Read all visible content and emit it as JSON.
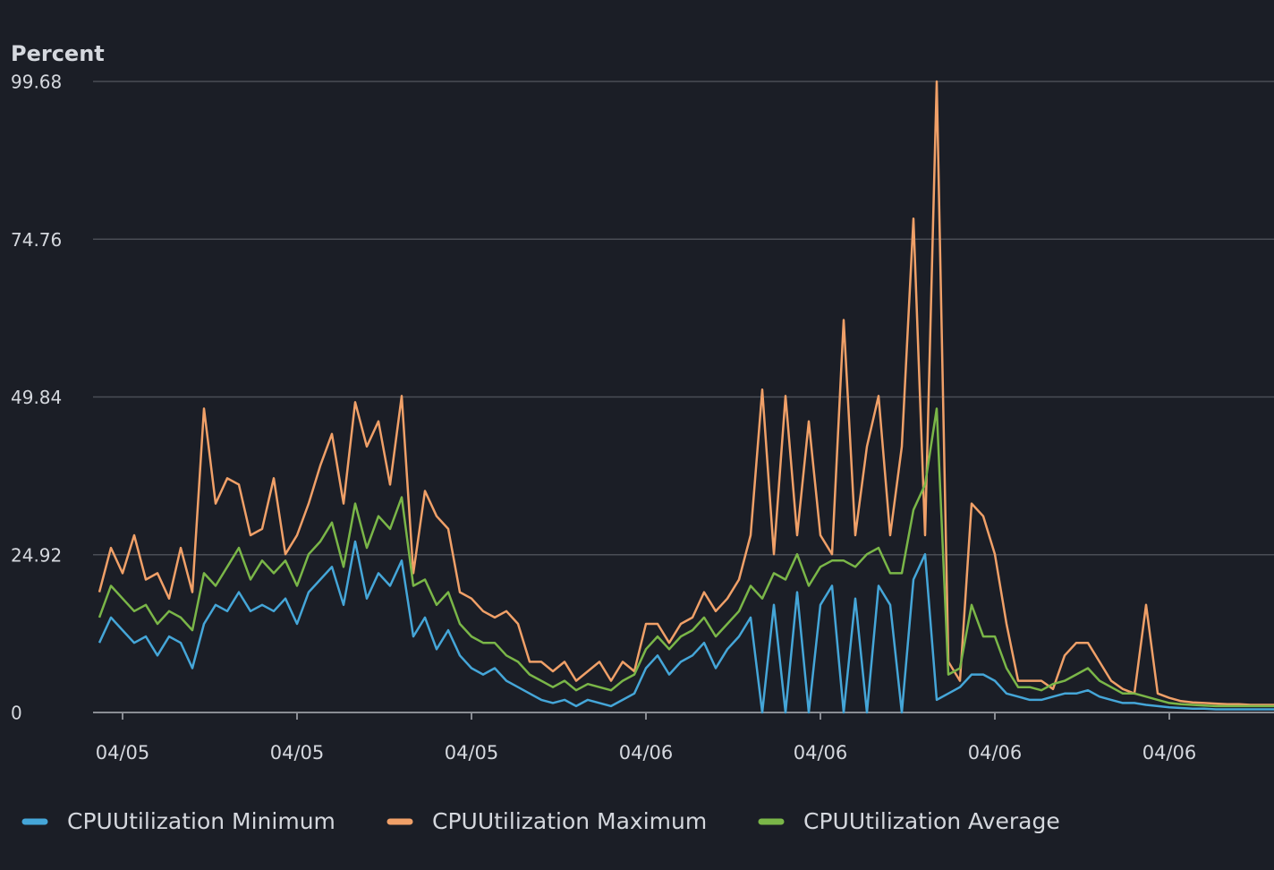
{
  "chart_data": {
    "type": "line",
    "y_label": "Percent",
    "ylim": [
      0,
      99.68
    ],
    "yticks": [
      0,
      24.92,
      49.84,
      74.76,
      99.68
    ],
    "grid": true,
    "legend": "bottom",
    "categories": [
      null,
      null,
      "04/05",
      null,
      null,
      null,
      null,
      null,
      null,
      null,
      null,
      null,
      null,
      null,
      null,
      null,
      null,
      "04/05",
      null,
      null,
      null,
      null,
      null,
      null,
      null,
      null,
      null,
      null,
      null,
      null,
      null,
      null,
      "04/05",
      null,
      null,
      null,
      null,
      null,
      null,
      null,
      null,
      null,
      null,
      null,
      null,
      null,
      null,
      "04/06",
      null,
      null,
      null,
      null,
      null,
      null,
      null,
      null,
      null,
      null,
      null,
      null,
      null,
      null,
      "04/06",
      null,
      null,
      null,
      null,
      null,
      null,
      null,
      null,
      null,
      null,
      null,
      null,
      null,
      null,
      "04/06",
      null,
      null,
      null,
      null,
      null,
      null,
      null,
      null,
      null,
      null,
      null,
      null,
      null,
      null,
      "04/06",
      null,
      null,
      null,
      null,
      null,
      null,
      null,
      null,
      null
    ],
    "series": [
      {
        "name": "CPUUtilization Minimum",
        "color": "#45a6d8",
        "values": [
          11,
          15,
          13,
          11,
          12,
          9,
          12,
          11,
          7,
          14,
          17,
          16,
          19,
          16,
          17,
          16,
          18,
          14,
          19,
          21,
          23,
          17,
          27,
          18,
          22,
          20,
          24,
          12,
          15,
          10,
          13,
          9,
          7,
          6,
          7,
          5,
          4,
          3,
          2,
          1.5,
          2,
          1,
          2,
          1.5,
          1,
          2,
          3,
          7,
          9,
          6,
          8,
          9,
          11,
          7,
          10,
          12,
          15,
          0,
          17,
          0,
          19,
          0,
          17,
          20,
          0,
          18,
          0,
          20,
          17,
          0,
          21,
          25,
          2,
          3,
          4,
          6,
          6,
          5,
          3,
          2.5,
          2,
          2,
          2.5,
          3,
          3,
          3.5,
          2.5,
          2,
          1.5,
          1.5,
          1.2,
          1,
          0.8,
          0.7,
          0.6,
          0.6,
          0.5,
          0.5,
          0.5,
          0.5,
          0.5,
          0.5
        ]
      },
      {
        "name": "CPUUtilization Maximum",
        "color": "#f0a068",
        "values": [
          19,
          26,
          22,
          28,
          21,
          22,
          18,
          26,
          19,
          48,
          33,
          37,
          36,
          28,
          29,
          37,
          25,
          28,
          33,
          39,
          44,
          33,
          49,
          42,
          46,
          36,
          50,
          22,
          35,
          31,
          29,
          19,
          18,
          16,
          15,
          16,
          14,
          8,
          8,
          6.5,
          8,
          5,
          6.5,
          8,
          5,
          8,
          6.5,
          14,
          14,
          11,
          14,
          15,
          19,
          16,
          18,
          21,
          28,
          51,
          25,
          50,
          28,
          46,
          28,
          25,
          62,
          28,
          42,
          50,
          28,
          42,
          78,
          28,
          99.68,
          8,
          5,
          33,
          31,
          25,
          14,
          5,
          5,
          5,
          3.7,
          9,
          11,
          11,
          8,
          5,
          3.7,
          3,
          17,
          3,
          2.3,
          1.8,
          1.6,
          1.5,
          1.4,
          1.3,
          1.3,
          1.2,
          1.2,
          1.2
        ]
      },
      {
        "name": "CPUUtilization Average",
        "color": "#7ab648",
        "values": [
          15,
          20,
          18,
          16,
          17,
          14,
          16,
          15,
          13,
          22,
          20,
          23,
          26,
          21,
          24,
          22,
          24,
          20,
          25,
          27,
          30,
          23,
          33,
          26,
          31,
          29,
          34,
          20,
          21,
          17,
          19,
          14,
          12,
          11,
          11,
          9,
          8,
          6,
          5,
          4,
          5,
          3.5,
          4.5,
          4,
          3.5,
          5,
          6,
          10,
          12,
          10,
          12,
          13,
          15,
          12,
          14,
          16,
          20,
          18,
          22,
          21,
          25,
          20,
          23,
          24,
          24,
          23,
          25,
          26,
          22,
          22,
          32,
          36,
          48,
          6,
          7,
          17,
          12,
          12,
          7,
          4,
          4,
          3.5,
          4.5,
          5,
          6,
          7,
          5,
          4,
          3,
          3,
          2.5,
          2,
          1.5,
          1.3,
          1.2,
          1.1,
          1,
          1,
          1,
          1,
          1,
          1
        ]
      }
    ]
  }
}
